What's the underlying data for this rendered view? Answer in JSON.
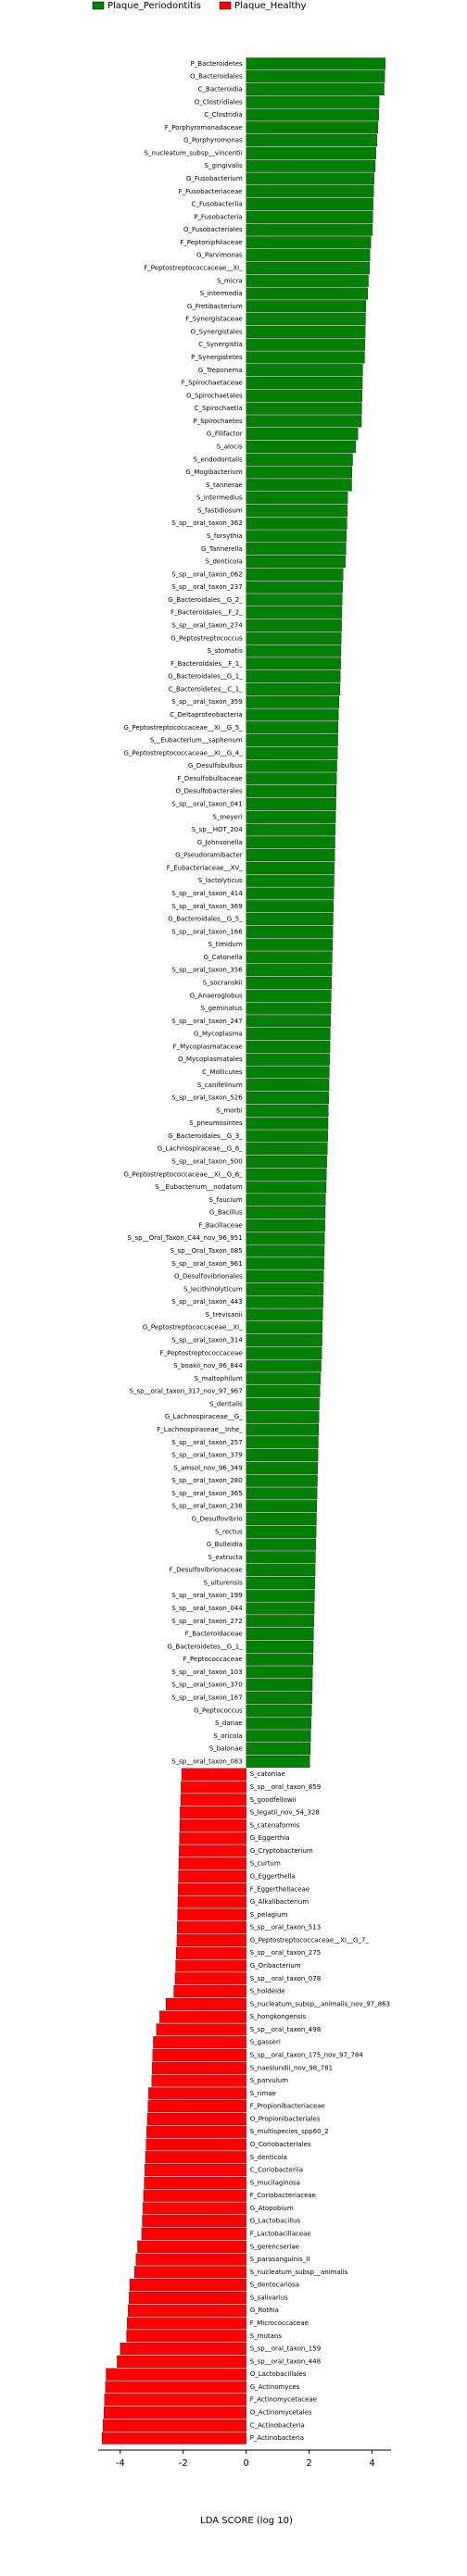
{
  "chart_data": {
    "type": "lda_bar",
    "xlabel": "LDA SCORE (log 10)",
    "xlim": [
      -4.7,
      4.6
    ],
    "xticks": [
      -4,
      -2,
      0,
      2,
      4
    ],
    "series": [
      {
        "name": "Plaque_Periodontitis",
        "color": "#008000",
        "categories": [
          "P_Bacteroidetes",
          "O_Bacteroidales",
          "C_Bacteroidia",
          "O_Clostridiales",
          "C_Clostridia",
          "F_Porphyromonadaceae",
          "G_Porphyromonas",
          "S_nucleatum_subsp__vincentii",
          "S_gingivalis",
          "G_Fusobacterium",
          "F_Fusobacteriaceae",
          "C_Fusobacteriia",
          "P_Fusobacteria",
          "O_Fusobacteriales",
          "F_Peptoniphilaceae",
          "G_Parvimonas",
          "F_Peptostreptococcaceae__XI_",
          "S_micra",
          "S_intermedia",
          "G_Fretibacterium",
          "F_Synergistaceae",
          "O_Synergistales",
          "C_Synergistia",
          "P_Synergistetes",
          "G_Treponema",
          "F_Spirochaetaceae",
          "O_Spirochaetales",
          "C_Spirochaetia",
          "P_Spirochaetes",
          "G_Filifactor",
          "S_alocis",
          "S_endodontalis",
          "G_Mogibacterium",
          "S_tannerae",
          "S_intermedius",
          "S_fastidiosum",
          "S_sp__oral_taxon_362",
          "S_forsythia",
          "G_Tannerella",
          "S_denticola",
          "S_sp__oral_taxon_062",
          "S_sp__oral_taxon_237",
          "G_Bacteroidales__G_2_",
          "F_Bacteroidales__F_2_",
          "S_sp__oral_taxon_274",
          "G_Peptostreptococcus",
          "S_stomatis",
          "F_Bacteroidales__F_1_",
          "G_Bacteroidales__G_1_",
          "C_Bacteroidetes__C_1_",
          "S_sp__oral_taxon_359",
          "C_Deltaproteobacteria",
          "G_Peptostreptococcaceae__XI__G_5_",
          "S__Eubacterium__saphenum",
          "G_Peptostreptococcaceae__XI__G_4_",
          "G_Desulfobulbus",
          "F_Desulfobulbaceae",
          "O_Desulfobacterales",
          "S_sp__oral_taxon_041",
          "S_meyeri",
          "S_sp__HOT_204",
          "G_Johnsonella",
          "G_Pseudoramibacter",
          "F_Eubacteriaceae__XV_",
          "S_lactolyticus",
          "S_sp__oral_taxon_414",
          "S_sp__oral_taxon_369",
          "G_Bacteroidales__G_5_",
          "S_sp__oral_taxon_166",
          "S_timidum",
          "G_Catonella",
          "S_sp__oral_taxon_356",
          "S_socranskii",
          "G_Anaeroglobus",
          "S_geminatus",
          "S_sp__oral_taxon_247",
          "G_Mycoplasma",
          "F_Mycoplasmataceae",
          "O_Mycoplasmatales",
          "C_Mollicutes",
          "S_canifelinum",
          "S_sp__oral_taxon_526",
          "S_morbi",
          "S_pneumosintes",
          "G_Bacteroidales__G_3_",
          "G_Lachnospiraceae__G_8_",
          "S_sp__oral_taxon_500",
          "G_Peptostreptococcaceae__XI__G_6_",
          "S__Eubacterium__nodatum",
          "S_faucium",
          "G_Bacillus",
          "F_Bacillaceae",
          "S_sp__Oral_Taxon_C44_nov_96_951",
          "S_sp__Oral_Taxon_085",
          "S_sp__oral_taxon_961",
          "O_Desulfovibrionales",
          "S_lecithinolyticum",
          "S_sp__oral_taxon_443",
          "S_trevisanii",
          "G_Peptostreptococcaceae__XI_",
          "S_sp__oral_taxon_314",
          "F_Peptostreptococcaceae",
          "S_boakii_nov_96_844",
          "S_maltophilum",
          "S_sp__oral_taxon_317_nov_97_967",
          "S_dentalis",
          "G_Lachnospiraceae__G_",
          "F_Lachnospiraceae__Inhe_",
          "S_sp__oral_taxon_257",
          "S_sp__oral_taxon_379",
          "S_amsol_nov_96_349",
          "S_sp__oral_taxon_280",
          "S_sp__oral_taxon_365",
          "S_sp__oral_taxon_238",
          "G_Desulfovibrio",
          "S_rectus",
          "G_Bulleidia",
          "S_extructa",
          "F_Desulfovibrionaceae",
          "S_ulturensis",
          "S_sp__oral_taxon_199",
          "S_sp__oral_taxon_044",
          "S_sp__oral_taxon_272",
          "F_Bacteroidaceae",
          "G_Bacteroidetes__G_1_",
          "F_Peptococcaceae",
          "S_sp__oral_taxon_103",
          "S_sp__oral_taxon_370",
          "S_sp__oral_taxon_167",
          "G_Peptococcus",
          "S_danae",
          "S_oricola",
          "S_balonae",
          "S_sp__oral_taxon_083"
        ],
        "values": [
          4.42,
          4.4,
          4.38,
          4.22,
          4.21,
          4.18,
          4.15,
          4.12,
          4.1,
          4.06,
          4.05,
          4.03,
          4.02,
          4.01,
          3.96,
          3.93,
          3.92,
          3.88,
          3.86,
          3.8,
          3.79,
          3.78,
          3.77,
          3.76,
          3.7,
          3.69,
          3.68,
          3.67,
          3.66,
          3.55,
          3.48,
          3.38,
          3.36,
          3.35,
          3.22,
          3.21,
          3.2,
          3.18,
          3.17,
          3.15,
          3.08,
          3.06,
          3.05,
          3.04,
          3.03,
          3.02,
          3.01,
          3.0,
          2.99,
          2.98,
          2.95,
          2.93,
          2.92,
          2.91,
          2.9,
          2.88,
          2.87,
          2.86,
          2.85,
          2.84,
          2.83,
          2.82,
          2.81,
          2.8,
          2.79,
          2.78,
          2.77,
          2.76,
          2.75,
          2.74,
          2.73,
          2.72,
          2.71,
          2.7,
          2.69,
          2.68,
          2.67,
          2.66,
          2.65,
          2.64,
          2.63,
          2.62,
          2.61,
          2.6,
          2.59,
          2.58,
          2.56,
          2.55,
          2.54,
          2.52,
          2.51,
          2.5,
          2.49,
          2.48,
          2.47,
          2.46,
          2.45,
          2.44,
          2.43,
          2.42,
          2.41,
          2.4,
          2.38,
          2.36,
          2.34,
          2.32,
          2.31,
          2.3,
          2.29,
          2.28,
          2.27,
          2.26,
          2.25,
          2.24,
          2.23,
          2.22,
          2.21,
          2.2,
          2.19,
          2.18,
          2.17,
          2.16,
          2.15,
          2.14,
          2.13,
          2.12,
          2.11,
          2.1,
          2.09,
          2.08,
          2.06,
          2.05,
          2.04,
          2.02
        ]
      },
      {
        "name": "Plaque_Healthy",
        "color": "#ff0000",
        "categories": [
          "S_catoniae",
          "S_sp__oral_taxon_859",
          "S_goodfellowii",
          "S_legatii_nov_54_328",
          "S_catenaformis",
          "G_Eggerthia",
          "G_Cryptobacterium",
          "S_curtum",
          "G_Eggerthella",
          "F_Eggerthellaceae",
          "G_Alkalibacterium",
          "S_pelagium",
          "S_sp__oral_taxon_513",
          "G_Peptostreptococcaceae__XI__G_7_",
          "S_sp__oral_taxon_275",
          "G_Oribacterium",
          "S_sp__oral_taxon_078",
          "S_holdeide",
          "S_nucleatum_subsp__animalis_nov_97_863",
          "S_hongkongensis",
          "S_sp__oral_taxon_498",
          "S_gasseri",
          "S_sp__oral_taxon_175_nov_97_784",
          "S_naeslundii_nov_98_781",
          "S_parvulum",
          "S_rimae",
          "F_Propionibacteriaceae",
          "O_Propionibacteriales",
          "S_multispecies_spp60_2",
          "O_Coriobacteriales",
          "S_denticola",
          "C_Coriobacteriia",
          "S_mucilaginosa",
          "F_Coriobacteriaceae",
          "G_Atopobium",
          "G_Lactobacillus",
          "F_Lactobacillaceae",
          "S_gerencseriae",
          "S_parasanguinis_II",
          "S_nucleatum_subsp__animalis",
          "S_dentocariosa",
          "S_salivarius",
          "G_Rothia",
          "F_Micrococcaceae",
          "S_mutans",
          "S_sp__oral_taxon_159",
          "S_sp__oral_taxon_448",
          "O_Lactobacillales",
          "G_Actinomyces",
          "F_Actinomycetaceae",
          "O_Actinomycetales",
          "C_Actinobacteria",
          "P_Actinobacteria"
        ],
        "values": [
          -2.05,
          -2.07,
          -2.08,
          -2.1,
          -2.11,
          -2.12,
          -2.13,
          -2.14,
          -2.15,
          -2.16,
          -2.17,
          -2.18,
          -2.19,
          -2.2,
          -2.22,
          -2.24,
          -2.26,
          -2.3,
          -2.55,
          -2.75,
          -2.85,
          -2.95,
          -2.97,
          -2.99,
          -3.0,
          -3.1,
          -3.12,
          -3.14,
          -3.16,
          -3.18,
          -3.2,
          -3.22,
          -3.24,
          -3.26,
          -3.28,
          -3.3,
          -3.32,
          -3.45,
          -3.5,
          -3.55,
          -3.7,
          -3.72,
          -3.75,
          -3.78,
          -3.8,
          -4.0,
          -4.1,
          -4.45,
          -4.47,
          -4.5,
          -4.52,
          -4.55,
          -4.58
        ]
      }
    ]
  }
}
